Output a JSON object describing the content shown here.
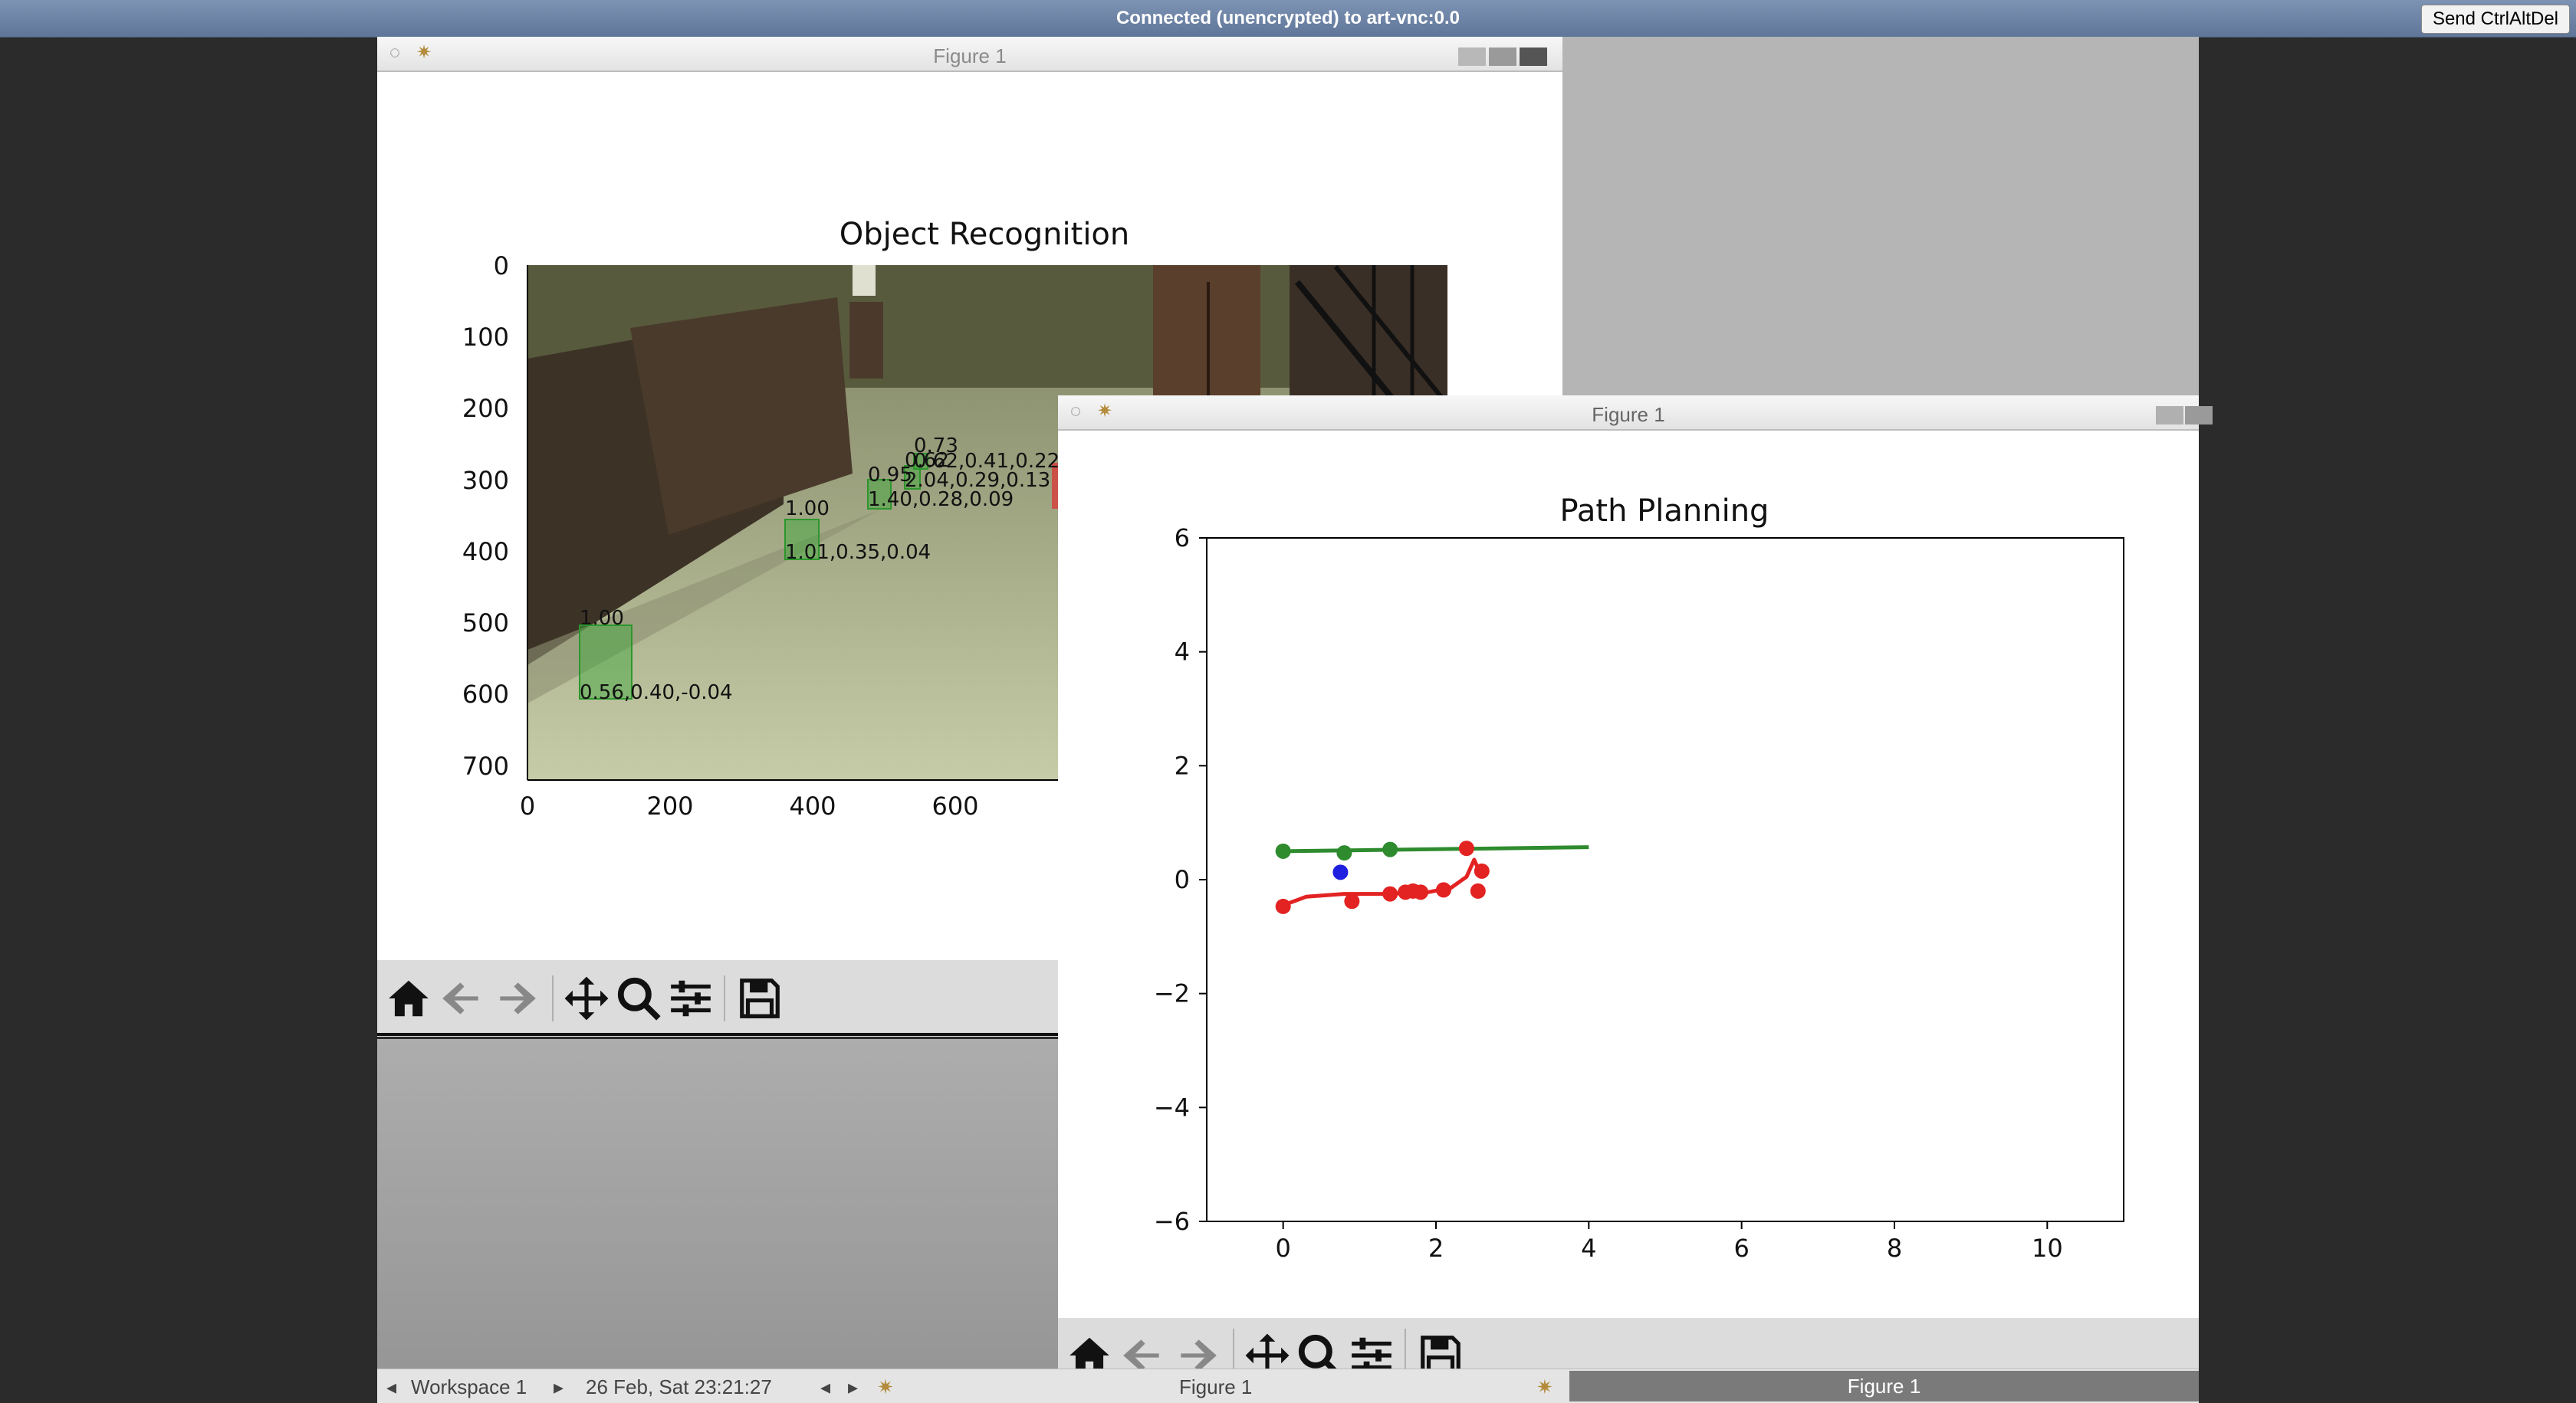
{
  "vnc": {
    "title": "Connected (unencrypted) to art-vnc:0.0",
    "send_button": "Send CtrlAltDel"
  },
  "figure_left": {
    "title": "Figure 1",
    "plot_title": "Object Recognition",
    "x_ticks": [
      "0",
      "200",
      "400",
      "600"
    ],
    "y_ticks": [
      "0",
      "100",
      "200",
      "300",
      "400",
      "500",
      "600",
      "700"
    ],
    "detections": [
      {
        "score": "1.00",
        "info": "0.56,0.40,-0.04"
      },
      {
        "score": "1.00",
        "info": "1.01,0.35,0.04"
      },
      {
        "score": "0.95",
        "info": "1.40,0.28,0.09"
      },
      {
        "score": "0.62",
        "info": "2.04,0.29,0.13"
      },
      {
        "score": "0.73",
        "info": "0.62,0.41,0.22"
      }
    ],
    "toolbar": [
      "home-icon",
      "back-icon",
      "forward-icon",
      "pan-icon",
      "zoom-icon",
      "configure-icon",
      "save-icon"
    ]
  },
  "figure_right": {
    "title": "Figure 1",
    "toolbar": [
      "home-icon",
      "back-icon",
      "forward-icon",
      "pan-icon",
      "zoom-icon",
      "configure-icon",
      "save-icon"
    ]
  },
  "taskbar": {
    "workspace": "Workspace 1",
    "datetime": "26 Feb, Sat 23:21:27",
    "task_1": "Figure 1",
    "task_2": "Figure 1"
  },
  "chart_data": {
    "type": "scatter",
    "title": "Path Planning",
    "xlabel": "",
    "ylabel": "",
    "xlim": [
      -1,
      11
    ],
    "ylim": [
      -6,
      6
    ],
    "x_ticks": [
      0,
      2,
      4,
      6,
      8,
      10
    ],
    "y_ticks": [
      -6,
      -4,
      -2,
      0,
      2,
      4,
      6
    ],
    "series": [
      {
        "color": "#2e8b2e",
        "mode": "line",
        "x": [
          0,
          4
        ],
        "y": [
          0.5,
          0.57
        ]
      },
      {
        "color": "#2e8b2e",
        "mode": "points",
        "x": [
          0,
          0.8,
          1.4
        ],
        "y": [
          0.5,
          0.47,
          0.53
        ]
      },
      {
        "color": "#e32222",
        "mode": "line",
        "x": [
          0,
          0.3,
          0.8,
          1.3,
          1.9,
          2.2,
          2.4,
          2.5,
          2.55
        ],
        "y": [
          -0.45,
          -0.3,
          -0.25,
          -0.25,
          -0.22,
          -0.14,
          0.05,
          0.35,
          0.2
        ]
      },
      {
        "color": "#e32222",
        "mode": "points",
        "x": [
          0,
          0.9,
          1.4,
          1.6,
          1.7,
          1.8,
          2.1,
          2.4,
          2.6,
          2.55
        ],
        "y": [
          -0.47,
          -0.38,
          -0.25,
          -0.22,
          -0.2,
          -0.22,
          -0.18,
          0.55,
          0.15,
          -0.2
        ]
      },
      {
        "color": "#1f1fe0",
        "mode": "points",
        "x": [
          0.75
        ],
        "y": [
          0.13
        ]
      }
    ]
  }
}
